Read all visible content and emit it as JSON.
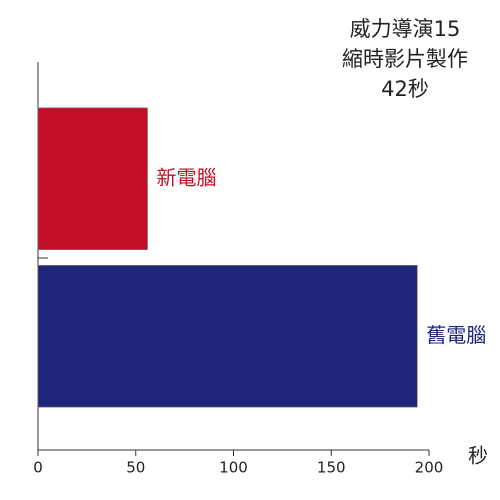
{
  "chart_data": {
    "type": "barh",
    "title": [
      "威力導演15",
      "縮時影片製作",
      "42秒"
    ],
    "categories": [
      "新電腦",
      "舊電腦"
    ],
    "values": [
      56,
      194
    ],
    "colors": [
      "#c20e25",
      "#1f2579"
    ],
    "xlabel": "秒",
    "xlim": [
      0,
      200
    ],
    "xticks": [
      0,
      50,
      100,
      150,
      200
    ]
  }
}
